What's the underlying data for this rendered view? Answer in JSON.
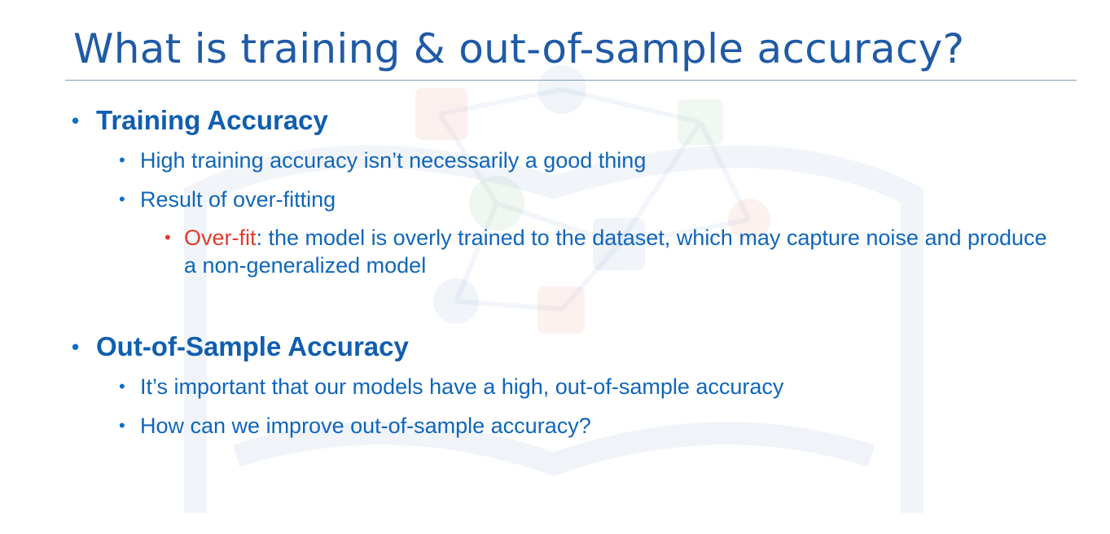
{
  "slide": {
    "title": "What is training & out-of-sample accuracy?"
  },
  "sections": [
    {
      "heading": "Training Accuracy",
      "bullets": [
        "High training accuracy isn’t necessarily a good thing",
        "Result of over-fitting"
      ],
      "sub": {
        "term": "Over-fit",
        "text": ": the model is overly trained to the dataset, which may capture noise and produce a non-generalized model"
      }
    },
    {
      "heading": "Out-of-Sample Accuracy",
      "bullets": [
        "It’s important that our models have a high, out-of-sample accuracy",
        "How can we improve out-of-sample accuracy?"
      ]
    }
  ],
  "colors": {
    "title": "#1f5aa6",
    "text": "#0f66bb",
    "highlight": "#e33b2e"
  }
}
